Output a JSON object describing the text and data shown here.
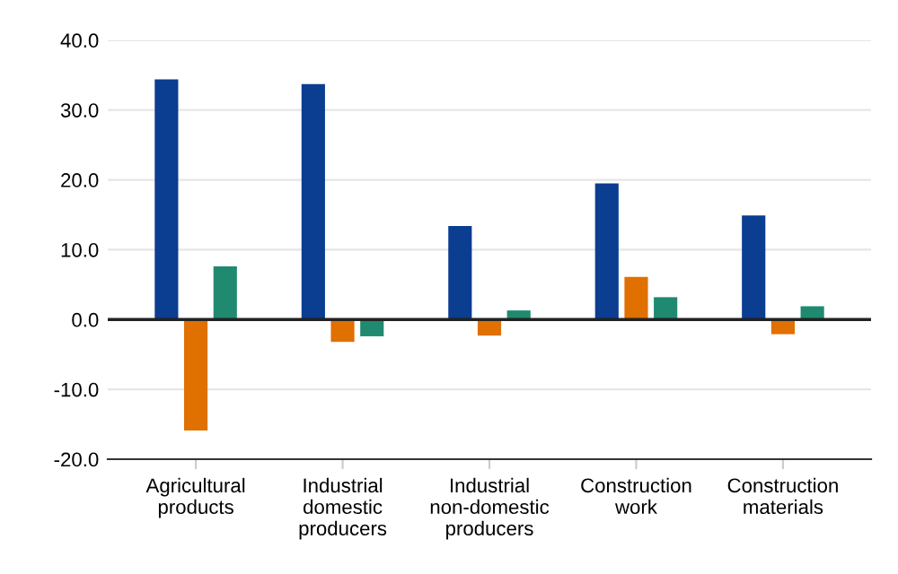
{
  "chart_data": {
    "type": "bar",
    "categories": [
      "Agricultural products",
      "Industrial domestic producers",
      "Industrial non-domestic producers",
      "Construction work",
      "Construction materials"
    ],
    "series": [
      {
        "color": "#0b3d91",
        "values": [
          34.4,
          33.7,
          13.4,
          19.5,
          14.9
        ]
      },
      {
        "color": "#e07000",
        "values": [
          -15.9,
          -3.2,
          -2.3,
          6.1,
          -2.1
        ]
      },
      {
        "color": "#1f8a70",
        "values": [
          7.6,
          -2.4,
          1.3,
          3.2,
          1.9
        ]
      }
    ],
    "ylim": [
      -20,
      40
    ],
    "yticks": [
      {
        "value": -20,
        "label": "-20.0"
      },
      {
        "value": -10,
        "label": "-10.0"
      },
      {
        "value": 0,
        "label": "0.0"
      },
      {
        "value": 10,
        "label": "10.0"
      },
      {
        "value": 20,
        "label": "20.0"
      },
      {
        "value": 30,
        "label": "30.0"
      },
      {
        "value": 40,
        "label": "40.0"
      }
    ],
    "ref_lines": [
      {
        "axis": "y",
        "value": 0,
        "color": "#222222"
      }
    ],
    "grid": "y"
  }
}
